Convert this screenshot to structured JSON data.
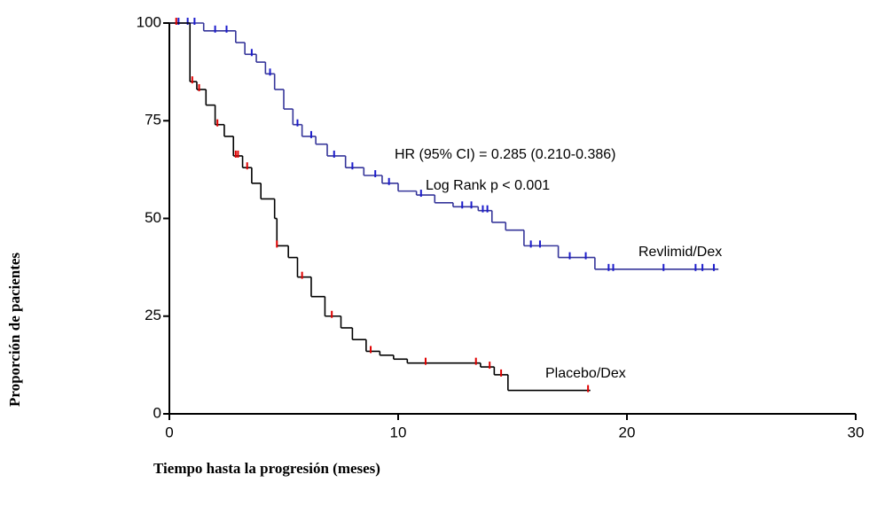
{
  "chart_data": {
    "type": "step",
    "xlabel": "Tiempo hasta la progresión (meses)",
    "ylabel": "Proporción de pacientes",
    "xlim": [
      0,
      30
    ],
    "xticks": [
      0,
      10,
      20,
      30
    ],
    "ylim": [
      0,
      100
    ],
    "yticks": [
      0,
      25,
      50,
      75,
      100
    ],
    "annotations": [
      "HR (95% CI) = 0.285 (0.210-0.386)",
      "Log Rank p < 0.001"
    ],
    "series": [
      {
        "name": "Revlimid/Dex",
        "color": "#35359a",
        "censor_color": "#1c1ccc",
        "x": [
          0,
          1.5,
          2.9,
          3.3,
          3.8,
          4.2,
          4.6,
          5.0,
          5.4,
          5.8,
          6.4,
          6.9,
          7.7,
          8.5,
          9.3,
          10.0,
          10.8,
          11.6,
          12.4,
          13.5,
          14.1,
          14.7,
          15.5,
          17.0,
          18.6,
          24.0
        ],
        "values": [
          100,
          98,
          95,
          92,
          90,
          87,
          83,
          78,
          74,
          71,
          69,
          66,
          63,
          61,
          59,
          57,
          56,
          54,
          53,
          52,
          49,
          47,
          43,
          40,
          37,
          37
        ],
        "censored": [
          0.4,
          0.8,
          1.1,
          2.0,
          2.5,
          3.6,
          4.4,
          5.6,
          6.2,
          7.2,
          8.0,
          9.0,
          9.6,
          11.0,
          12.8,
          13.2,
          13.7,
          13.9,
          15.8,
          16.2,
          17.5,
          18.2,
          19.2,
          19.4,
          21.6,
          23.0,
          23.3,
          23.8
        ]
      },
      {
        "name": "Placebo/Dex",
        "color": "#000000",
        "censor_color": "#e00000",
        "x": [
          0,
          0.9,
          1.2,
          1.6,
          2.0,
          2.4,
          2.8,
          3.2,
          3.6,
          4.0,
          4.6,
          4.7,
          5.2,
          5.6,
          6.2,
          6.8,
          7.5,
          8.0,
          8.6,
          9.2,
          9.8,
          10.4,
          13.6,
          14.2,
          14.8,
          18.4
        ],
        "values": [
          100,
          85,
          83,
          79,
          74,
          71,
          66,
          63,
          59,
          55,
          50,
          43,
          40,
          35,
          30,
          25,
          22,
          19,
          16,
          15,
          14,
          13,
          12,
          10,
          6,
          6
        ],
        "censored": [
          0.3,
          1.0,
          1.3,
          2.1,
          2.9,
          3.0,
          3.4,
          4.7,
          5.8,
          7.1,
          8.8,
          11.2,
          13.4,
          14.0,
          14.5,
          18.3
        ]
      }
    ]
  }
}
